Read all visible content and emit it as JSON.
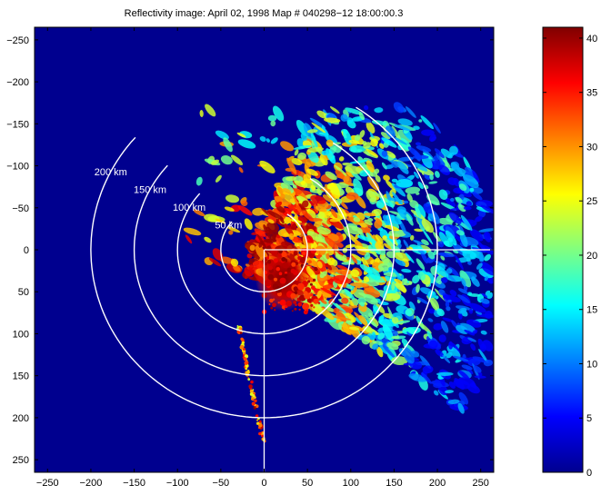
{
  "chart_data": {
    "type": "heatmap",
    "title": "Reflectivity image: April 02, 1998  Map # 040298−12  18:00:00.3",
    "xlabel": "",
    "ylabel": "",
    "xlim": [
      -265,
      265
    ],
    "ylim": [
      -265,
      265
    ],
    "y_axis_reversed": true,
    "x_ticks": [
      "−250",
      "−200",
      "−150",
      "−100",
      "−50",
      "0",
      "50",
      "100",
      "150",
      "200",
      "250"
    ],
    "x_tick_values": [
      -250,
      -200,
      -150,
      -100,
      -50,
      0,
      50,
      100,
      150,
      200,
      250
    ],
    "y_ticks": [
      "−250",
      "−200",
      "−150",
      "−100",
      "−50",
      "0",
      "50",
      "100",
      "150",
      "200",
      "250"
    ],
    "y_tick_values": [
      -250,
      -200,
      -150,
      -100,
      -50,
      0,
      50,
      100,
      150,
      200,
      250
    ],
    "colorbar": {
      "min": 0,
      "max": 41,
      "ticks": [
        "0",
        "5",
        "10",
        "15",
        "20",
        "25",
        "30",
        "35",
        "40"
      ],
      "tick_values": [
        0,
        5,
        10,
        15,
        20,
        25,
        30,
        35,
        40
      ],
      "colormap": "jet"
    },
    "background_color": "#00008f",
    "overlay_color": "#ffffff",
    "range_rings": [
      {
        "label": "50 km",
        "radius": 50
      },
      {
        "label": "100 km",
        "radius": 100
      },
      {
        "label": "150 km",
        "radius": 150
      },
      {
        "label": "200 km",
        "radius": 200
      }
    ],
    "crosshair_origin": [
      0,
      0
    ]
  }
}
